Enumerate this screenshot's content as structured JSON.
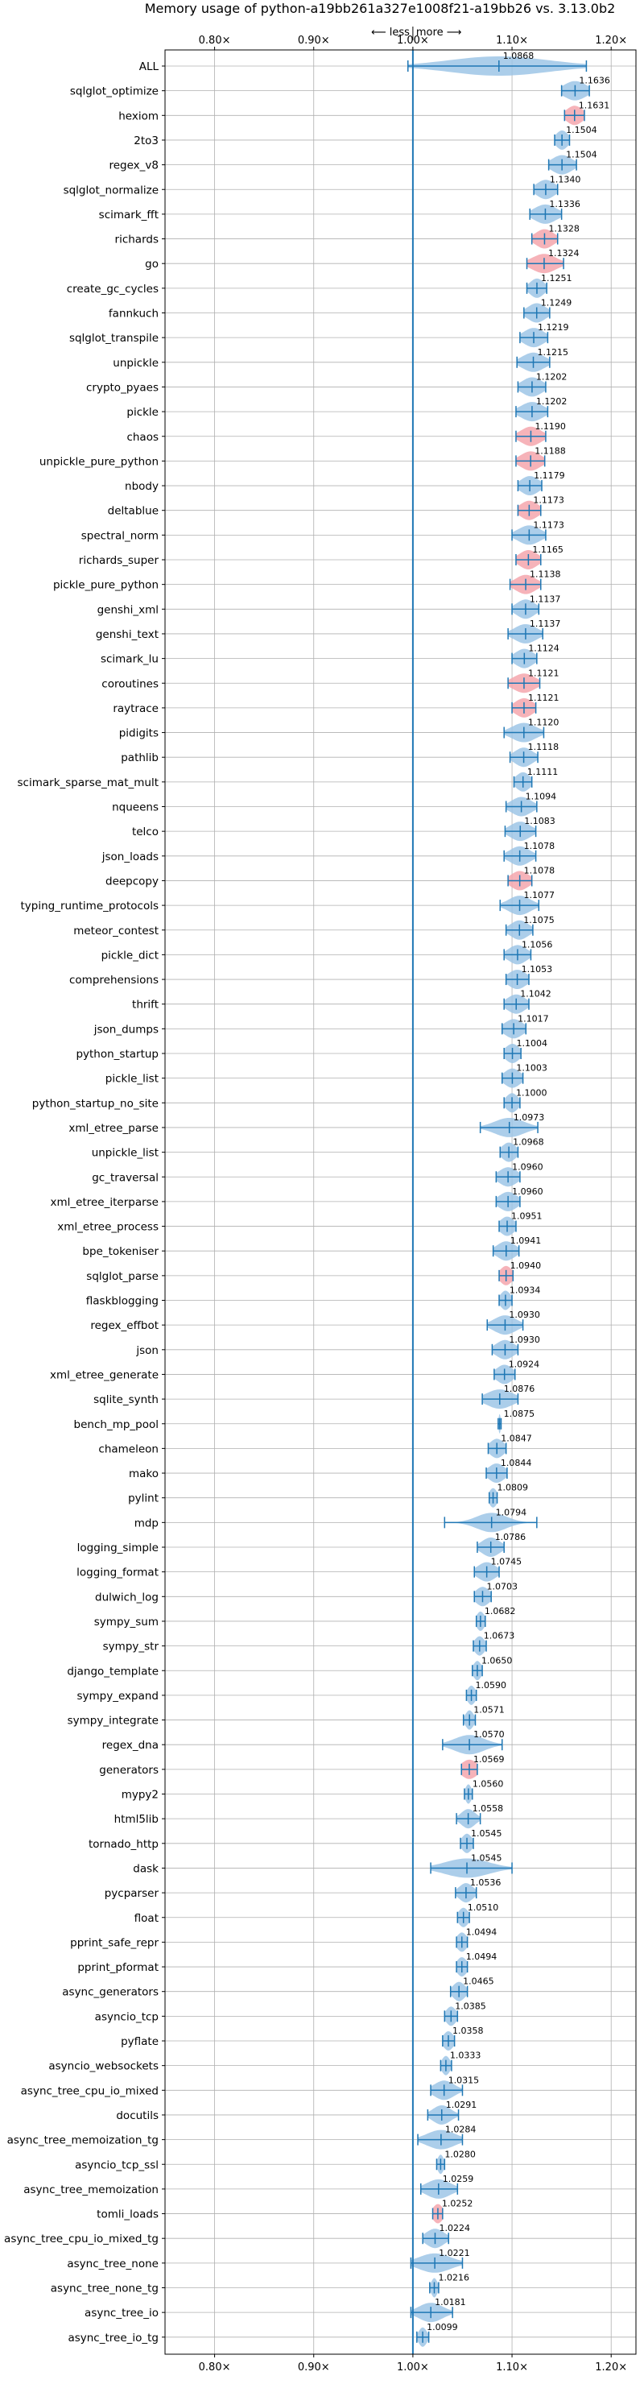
{
  "chart_data": {
    "type": "violin",
    "title": "Memory usage of python-a19bb261a327e1008f21-a19bb26 vs. 3.13.0b2",
    "xlim": [
      0.75,
      1.225
    ],
    "xticks": [
      0.8,
      0.9,
      1.0,
      1.1,
      1.2
    ],
    "xtick_labels": [
      "0.80×",
      "0.90×",
      "1.00×",
      "1.10×",
      "1.20×"
    ],
    "reference_line": 1.0,
    "annotation_less": "⟵ less",
    "annotation_more": "more ⟶",
    "grid": true,
    "colors": {
      "normal": "#9ec5e6",
      "highlight": "#f4a6ad",
      "line": "#1f77b4",
      "grid": "#b0b0b0"
    },
    "benchmarks": [
      {
        "name": "ALL",
        "value": 1.0868,
        "label": "1.0868",
        "min": 0.995,
        "max": 1.175,
        "spread": 0.05,
        "hl": false
      },
      {
        "name": "sqlglot_optimize",
        "value": 1.1636,
        "label": "1.1636",
        "min": 1.15,
        "max": 1.178,
        "spread": 0.011,
        "hl": false
      },
      {
        "name": "hexiom",
        "value": 1.1631,
        "label": "1.1631",
        "min": 1.153,
        "max": 1.173,
        "spread": 0.008,
        "hl": true
      },
      {
        "name": "2to3",
        "value": 1.1504,
        "label": "1.1504",
        "min": 1.143,
        "max": 1.158,
        "spread": 0.006,
        "hl": false
      },
      {
        "name": "regex_v8",
        "value": 1.1504,
        "label": "1.1504",
        "min": 1.137,
        "max": 1.165,
        "spread": 0.01,
        "hl": false
      },
      {
        "name": "sqlglot_normalize",
        "value": 1.134,
        "label": "1.1340",
        "min": 1.122,
        "max": 1.146,
        "spread": 0.009,
        "hl": false
      },
      {
        "name": "scimark_fft",
        "value": 1.1336,
        "label": "1.1336",
        "min": 1.118,
        "max": 1.15,
        "spread": 0.011,
        "hl": false
      },
      {
        "name": "richards",
        "value": 1.1328,
        "label": "1.1328",
        "min": 1.12,
        "max": 1.146,
        "spread": 0.009,
        "hl": true
      },
      {
        "name": "go",
        "value": 1.1324,
        "label": "1.1324",
        "min": 1.115,
        "max": 1.152,
        "spread": 0.012,
        "hl": true
      },
      {
        "name": "create_gc_cycles",
        "value": 1.1251,
        "label": "1.1251",
        "min": 1.115,
        "max": 1.135,
        "spread": 0.007,
        "hl": false
      },
      {
        "name": "fannkuch",
        "value": 1.1249,
        "label": "1.1249",
        "min": 1.112,
        "max": 1.138,
        "spread": 0.009,
        "hl": false
      },
      {
        "name": "sqlglot_transpile",
        "value": 1.1219,
        "label": "1.1219",
        "min": 1.108,
        "max": 1.136,
        "spread": 0.01,
        "hl": false
      },
      {
        "name": "unpickle",
        "value": 1.1215,
        "label": "1.1215",
        "min": 1.105,
        "max": 1.138,
        "spread": 0.011,
        "hl": false
      },
      {
        "name": "crypto_pyaes",
        "value": 1.1202,
        "label": "1.1202",
        "min": 1.106,
        "max": 1.134,
        "spread": 0.01,
        "hl": false
      },
      {
        "name": "pickle",
        "value": 1.1202,
        "label": "1.1202",
        "min": 1.104,
        "max": 1.136,
        "spread": 0.011,
        "hl": false
      },
      {
        "name": "chaos",
        "value": 1.119,
        "label": "1.1190",
        "min": 1.104,
        "max": 1.134,
        "spread": 0.01,
        "hl": true
      },
      {
        "name": "unpickle_pure_python",
        "value": 1.1188,
        "label": "1.1188",
        "min": 1.104,
        "max": 1.133,
        "spread": 0.01,
        "hl": true
      },
      {
        "name": "nbody",
        "value": 1.1179,
        "label": "1.1179",
        "min": 1.106,
        "max": 1.13,
        "spread": 0.009,
        "hl": false
      },
      {
        "name": "deltablue",
        "value": 1.1173,
        "label": "1.1173",
        "min": 1.106,
        "max": 1.129,
        "spread": 0.009,
        "hl": true
      },
      {
        "name": "spectral_norm",
        "value": 1.1173,
        "label": "1.1173",
        "min": 1.1,
        "max": 1.134,
        "spread": 0.011,
        "hl": false
      },
      {
        "name": "richards_super",
        "value": 1.1165,
        "label": "1.1165",
        "min": 1.104,
        "max": 1.129,
        "spread": 0.009,
        "hl": true
      },
      {
        "name": "pickle_pure_python",
        "value": 1.1138,
        "label": "1.1138",
        "min": 1.098,
        "max": 1.129,
        "spread": 0.01,
        "hl": true
      },
      {
        "name": "genshi_xml",
        "value": 1.1137,
        "label": "1.1137",
        "min": 1.1,
        "max": 1.127,
        "spread": 0.009,
        "hl": false
      },
      {
        "name": "genshi_text",
        "value": 1.1137,
        "label": "1.1137",
        "min": 1.096,
        "max": 1.131,
        "spread": 0.011,
        "hl": false
      },
      {
        "name": "scimark_lu",
        "value": 1.1124,
        "label": "1.1124",
        "min": 1.1,
        "max": 1.125,
        "spread": 0.009,
        "hl": false
      },
      {
        "name": "coroutines",
        "value": 1.1121,
        "label": "1.1121",
        "min": 1.096,
        "max": 1.128,
        "spread": 0.011,
        "hl": true
      },
      {
        "name": "raytrace",
        "value": 1.1121,
        "label": "1.1121",
        "min": 1.1,
        "max": 1.124,
        "spread": 0.009,
        "hl": true
      },
      {
        "name": "pidigits",
        "value": 1.112,
        "label": "1.1120",
        "min": 1.092,
        "max": 1.132,
        "spread": 0.012,
        "hl": false
      },
      {
        "name": "pathlib",
        "value": 1.1118,
        "label": "1.1118",
        "min": 1.098,
        "max": 1.126,
        "spread": 0.009,
        "hl": false
      },
      {
        "name": "scimark_sparse_mat_mult",
        "value": 1.1111,
        "label": "1.1111",
        "min": 1.102,
        "max": 1.12,
        "spread": 0.007,
        "hl": false
      },
      {
        "name": "nqueens",
        "value": 1.1094,
        "label": "1.1094",
        "min": 1.094,
        "max": 1.125,
        "spread": 0.01,
        "hl": false
      },
      {
        "name": "telco",
        "value": 1.1083,
        "label": "1.1083",
        "min": 1.093,
        "max": 1.124,
        "spread": 0.01,
        "hl": false
      },
      {
        "name": "json_loads",
        "value": 1.1078,
        "label": "1.1078",
        "min": 1.092,
        "max": 1.124,
        "spread": 0.01,
        "hl": false
      },
      {
        "name": "deepcopy",
        "value": 1.1078,
        "label": "1.1078",
        "min": 1.096,
        "max": 1.12,
        "spread": 0.009,
        "hl": true
      },
      {
        "name": "typing_runtime_protocols",
        "value": 1.1077,
        "label": "1.1077",
        "min": 1.088,
        "max": 1.127,
        "spread": 0.011,
        "hl": false
      },
      {
        "name": "meteor_contest",
        "value": 1.1075,
        "label": "1.1075",
        "min": 1.094,
        "max": 1.121,
        "spread": 0.009,
        "hl": false
      },
      {
        "name": "pickle_dict",
        "value": 1.1056,
        "label": "1.1056",
        "min": 1.092,
        "max": 1.119,
        "spread": 0.009,
        "hl": false
      },
      {
        "name": "comprehensions",
        "value": 1.1053,
        "label": "1.1053",
        "min": 1.094,
        "max": 1.117,
        "spread": 0.009,
        "hl": false
      },
      {
        "name": "thrift",
        "value": 1.1042,
        "label": "1.1042",
        "min": 1.092,
        "max": 1.117,
        "spread": 0.009,
        "hl": false
      },
      {
        "name": "json_dumps",
        "value": 1.1017,
        "label": "1.1017",
        "min": 1.09,
        "max": 1.114,
        "spread": 0.009,
        "hl": false
      },
      {
        "name": "python_startup",
        "value": 1.1004,
        "label": "1.1004",
        "min": 1.092,
        "max": 1.109,
        "spread": 0.007,
        "hl": false
      },
      {
        "name": "pickle_list",
        "value": 1.1003,
        "label": "1.1003",
        "min": 1.09,
        "max": 1.111,
        "spread": 0.008,
        "hl": false
      },
      {
        "name": "python_startup_no_site",
        "value": 1.1,
        "label": "1.1000",
        "min": 1.092,
        "max": 1.108,
        "spread": 0.006,
        "hl": false
      },
      {
        "name": "xml_etree_parse",
        "value": 1.0973,
        "label": "1.0973",
        "min": 1.068,
        "max": 1.126,
        "spread": 0.015,
        "hl": false
      },
      {
        "name": "unpickle_list",
        "value": 1.0968,
        "label": "1.0968",
        "min": 1.088,
        "max": 1.106,
        "spread": 0.007,
        "hl": false
      },
      {
        "name": "gc_traversal",
        "value": 1.096,
        "label": "1.0960",
        "min": 1.084,
        "max": 1.108,
        "spread": 0.009,
        "hl": false
      },
      {
        "name": "xml_etree_iterparse",
        "value": 1.096,
        "label": "1.0960",
        "min": 1.084,
        "max": 1.108,
        "spread": 0.009,
        "hl": false
      },
      {
        "name": "xml_etree_process",
        "value": 1.0951,
        "label": "1.0951",
        "min": 1.087,
        "max": 1.104,
        "spread": 0.007,
        "hl": false
      },
      {
        "name": "bpe_tokeniser",
        "value": 1.0941,
        "label": "1.0941",
        "min": 1.081,
        "max": 1.107,
        "spread": 0.009,
        "hl": false
      },
      {
        "name": "sqlglot_parse",
        "value": 1.094,
        "label": "1.0940",
        "min": 1.087,
        "max": 1.101,
        "spread": 0.006,
        "hl": true
      },
      {
        "name": "flaskblogging",
        "value": 1.0934,
        "label": "1.0934",
        "min": 1.087,
        "max": 1.1,
        "spread": 0.005,
        "hl": false
      },
      {
        "name": "regex_effbot",
        "value": 1.093,
        "label": "1.0930",
        "min": 1.075,
        "max": 1.111,
        "spread": 0.011,
        "hl": false
      },
      {
        "name": "json",
        "value": 1.093,
        "label": "1.0930",
        "min": 1.08,
        "max": 1.106,
        "spread": 0.009,
        "hl": false
      },
      {
        "name": "xml_etree_generate",
        "value": 1.0924,
        "label": "1.0924",
        "min": 1.082,
        "max": 1.103,
        "spread": 0.008,
        "hl": false
      },
      {
        "name": "sqlite_synth",
        "value": 1.0876,
        "label": "1.0876",
        "min": 1.07,
        "max": 1.106,
        "spread": 0.013,
        "hl": false
      },
      {
        "name": "bench_mp_pool",
        "value": 1.0875,
        "label": "1.0875",
        "min": 1.086,
        "max": 1.089,
        "spread": 0.001,
        "hl": false
      },
      {
        "name": "chameleon",
        "value": 1.0847,
        "label": "1.0847",
        "min": 1.076,
        "max": 1.094,
        "spread": 0.007,
        "hl": false
      },
      {
        "name": "mako",
        "value": 1.0844,
        "label": "1.0844",
        "min": 1.074,
        "max": 1.095,
        "spread": 0.008,
        "hl": false
      },
      {
        "name": "pylint",
        "value": 1.0809,
        "label": "1.0809",
        "min": 1.077,
        "max": 1.085,
        "spread": 0.004,
        "hl": false
      },
      {
        "name": "mdp",
        "value": 1.0794,
        "label": "1.0794",
        "min": 1.032,
        "max": 1.125,
        "spread": 0.015,
        "hl": false
      },
      {
        "name": "logging_simple",
        "value": 1.0786,
        "label": "1.0786",
        "min": 1.065,
        "max": 1.092,
        "spread": 0.009,
        "hl": false
      },
      {
        "name": "logging_format",
        "value": 1.0745,
        "label": "1.0745",
        "min": 1.062,
        "max": 1.087,
        "spread": 0.009,
        "hl": false
      },
      {
        "name": "dulwich_log",
        "value": 1.0703,
        "label": "1.0703",
        "min": 1.062,
        "max": 1.079,
        "spread": 0.007,
        "hl": false
      },
      {
        "name": "sympy_sum",
        "value": 1.0682,
        "label": "1.0682",
        "min": 1.064,
        "max": 1.073,
        "spread": 0.004,
        "hl": false
      },
      {
        "name": "sympy_str",
        "value": 1.0673,
        "label": "1.0673",
        "min": 1.061,
        "max": 1.074,
        "spread": 0.005,
        "hl": false
      },
      {
        "name": "django_template",
        "value": 1.065,
        "label": "1.0650",
        "min": 1.06,
        "max": 1.07,
        "spread": 0.004,
        "hl": false
      },
      {
        "name": "sympy_expand",
        "value": 1.059,
        "label": "1.0590",
        "min": 1.054,
        "max": 1.064,
        "spread": 0.004,
        "hl": false
      },
      {
        "name": "sympy_integrate",
        "value": 1.0571,
        "label": "1.0571",
        "min": 1.051,
        "max": 1.063,
        "spread": 0.004,
        "hl": false
      },
      {
        "name": "regex_dna",
        "value": 1.057,
        "label": "1.0570",
        "min": 1.03,
        "max": 1.09,
        "spread": 0.015,
        "hl": false
      },
      {
        "name": "generators",
        "value": 1.0569,
        "label": "1.0569",
        "min": 1.049,
        "max": 1.065,
        "spread": 0.008,
        "hl": true
      },
      {
        "name": "mypy2",
        "value": 1.056,
        "label": "1.0560",
        "min": 1.052,
        "max": 1.06,
        "spread": 0.003,
        "hl": false
      },
      {
        "name": "html5lib",
        "value": 1.0558,
        "label": "1.0558",
        "min": 1.044,
        "max": 1.068,
        "spread": 0.007,
        "hl": false
      },
      {
        "name": "tornado_http",
        "value": 1.0545,
        "label": "1.0545",
        "min": 1.048,
        "max": 1.061,
        "spread": 0.005,
        "hl": false
      },
      {
        "name": "dask",
        "value": 1.0545,
        "label": "1.0545",
        "min": 1.018,
        "max": 1.1,
        "spread": 0.022,
        "hl": false
      },
      {
        "name": "pycparser",
        "value": 1.0536,
        "label": "1.0536",
        "min": 1.043,
        "max": 1.064,
        "spread": 0.007,
        "hl": false
      },
      {
        "name": "float",
        "value": 1.051,
        "label": "1.0510",
        "min": 1.045,
        "max": 1.057,
        "spread": 0.005,
        "hl": false
      },
      {
        "name": "pprint_safe_repr",
        "value": 1.0494,
        "label": "1.0494",
        "min": 1.044,
        "max": 1.055,
        "spread": 0.005,
        "hl": false
      },
      {
        "name": "pprint_pformat",
        "value": 1.0494,
        "label": "1.0494",
        "min": 1.044,
        "max": 1.055,
        "spread": 0.005,
        "hl": false
      },
      {
        "name": "async_generators",
        "value": 1.0465,
        "label": "1.0465",
        "min": 1.038,
        "max": 1.055,
        "spread": 0.006,
        "hl": false
      },
      {
        "name": "asyncio_tcp",
        "value": 1.0385,
        "label": "1.0385",
        "min": 1.032,
        "max": 1.045,
        "spread": 0.005,
        "hl": false
      },
      {
        "name": "pyflate",
        "value": 1.0358,
        "label": "1.0358",
        "min": 1.03,
        "max": 1.042,
        "spread": 0.005,
        "hl": false
      },
      {
        "name": "asyncio_websockets",
        "value": 1.0333,
        "label": "1.0333",
        "min": 1.028,
        "max": 1.039,
        "spread": 0.004,
        "hl": false
      },
      {
        "name": "async_tree_cpu_io_mixed",
        "value": 1.0315,
        "label": "1.0315",
        "min": 1.018,
        "max": 1.05,
        "spread": 0.01,
        "hl": false
      },
      {
        "name": "docutils",
        "value": 1.0291,
        "label": "1.0291",
        "min": 1.015,
        "max": 1.046,
        "spread": 0.009,
        "hl": false
      },
      {
        "name": "async_tree_memoization_tg",
        "value": 1.0284,
        "label": "1.0284",
        "min": 1.005,
        "max": 1.05,
        "spread": 0.014,
        "hl": false
      },
      {
        "name": "asyncio_tcp_ssl",
        "value": 1.028,
        "label": "1.0280",
        "min": 1.024,
        "max": 1.032,
        "spread": 0.003,
        "hl": false
      },
      {
        "name": "async_tree_memoization",
        "value": 1.0259,
        "label": "1.0259",
        "min": 1.008,
        "max": 1.045,
        "spread": 0.012,
        "hl": false
      },
      {
        "name": "tomli_loads",
        "value": 1.0252,
        "label": "1.0252",
        "min": 1.02,
        "max": 1.03,
        "spread": 0.005,
        "hl": true
      },
      {
        "name": "async_tree_cpu_io_mixed_tg",
        "value": 1.0224,
        "label": "1.0224",
        "min": 1.01,
        "max": 1.036,
        "spread": 0.009,
        "hl": false
      },
      {
        "name": "async_tree_none",
        "value": 1.0221,
        "label": "1.0221",
        "min": 0.998,
        "max": 1.05,
        "spread": 0.016,
        "hl": false
      },
      {
        "name": "async_tree_none_tg",
        "value": 1.0216,
        "label": "1.0216",
        "min": 1.017,
        "max": 1.026,
        "spread": 0.003,
        "hl": false
      },
      {
        "name": "async_tree_io",
        "value": 1.0181,
        "label": "1.0181",
        "min": 0.998,
        "max": 1.04,
        "spread": 0.012,
        "hl": false
      },
      {
        "name": "async_tree_io_tg",
        "value": 1.0099,
        "label": "1.0099",
        "min": 1.004,
        "max": 1.016,
        "spread": 0.004,
        "hl": false
      }
    ]
  }
}
